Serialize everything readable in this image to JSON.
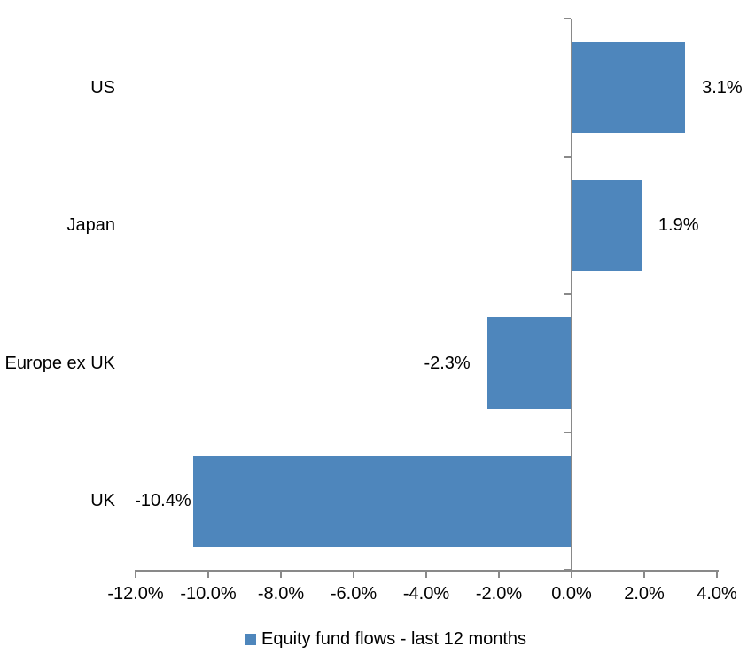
{
  "chart_data": {
    "type": "bar",
    "orientation": "horizontal",
    "title": "",
    "categories": [
      "US",
      "Japan",
      "Europe ex UK",
      "UK"
    ],
    "values": [
      3.1,
      1.9,
      -2.3,
      -10.4
    ],
    "data_labels": [
      "3.1%",
      "1.9%",
      "-2.3%",
      "-10.4%"
    ],
    "label_gaps": [
      19,
      19,
      19,
      2
    ],
    "xlim": [
      -12,
      4
    ],
    "x_ticks": [
      {
        "v": -12,
        "label": "-12.0%"
      },
      {
        "v": -10,
        "label": "-10.0%"
      },
      {
        "v": -8,
        "label": "-8.0%"
      },
      {
        "v": -6,
        "label": "-6.0%"
      },
      {
        "v": -4,
        "label": "-4.0%"
      },
      {
        "v": -2,
        "label": "-2.0%"
      },
      {
        "v": 0,
        "label": "0.0%"
      },
      {
        "v": 2,
        "label": "2.0%"
      },
      {
        "v": 4,
        "label": "4.0%"
      }
    ],
    "grid": false,
    "legend": {
      "position": "bottom",
      "label": "Equity fund flows - last 12 months"
    },
    "colors": {
      "bar": "#4E86BC",
      "axis": "#898989",
      "text": "#000000",
      "background": "#FFFFFF"
    }
  }
}
